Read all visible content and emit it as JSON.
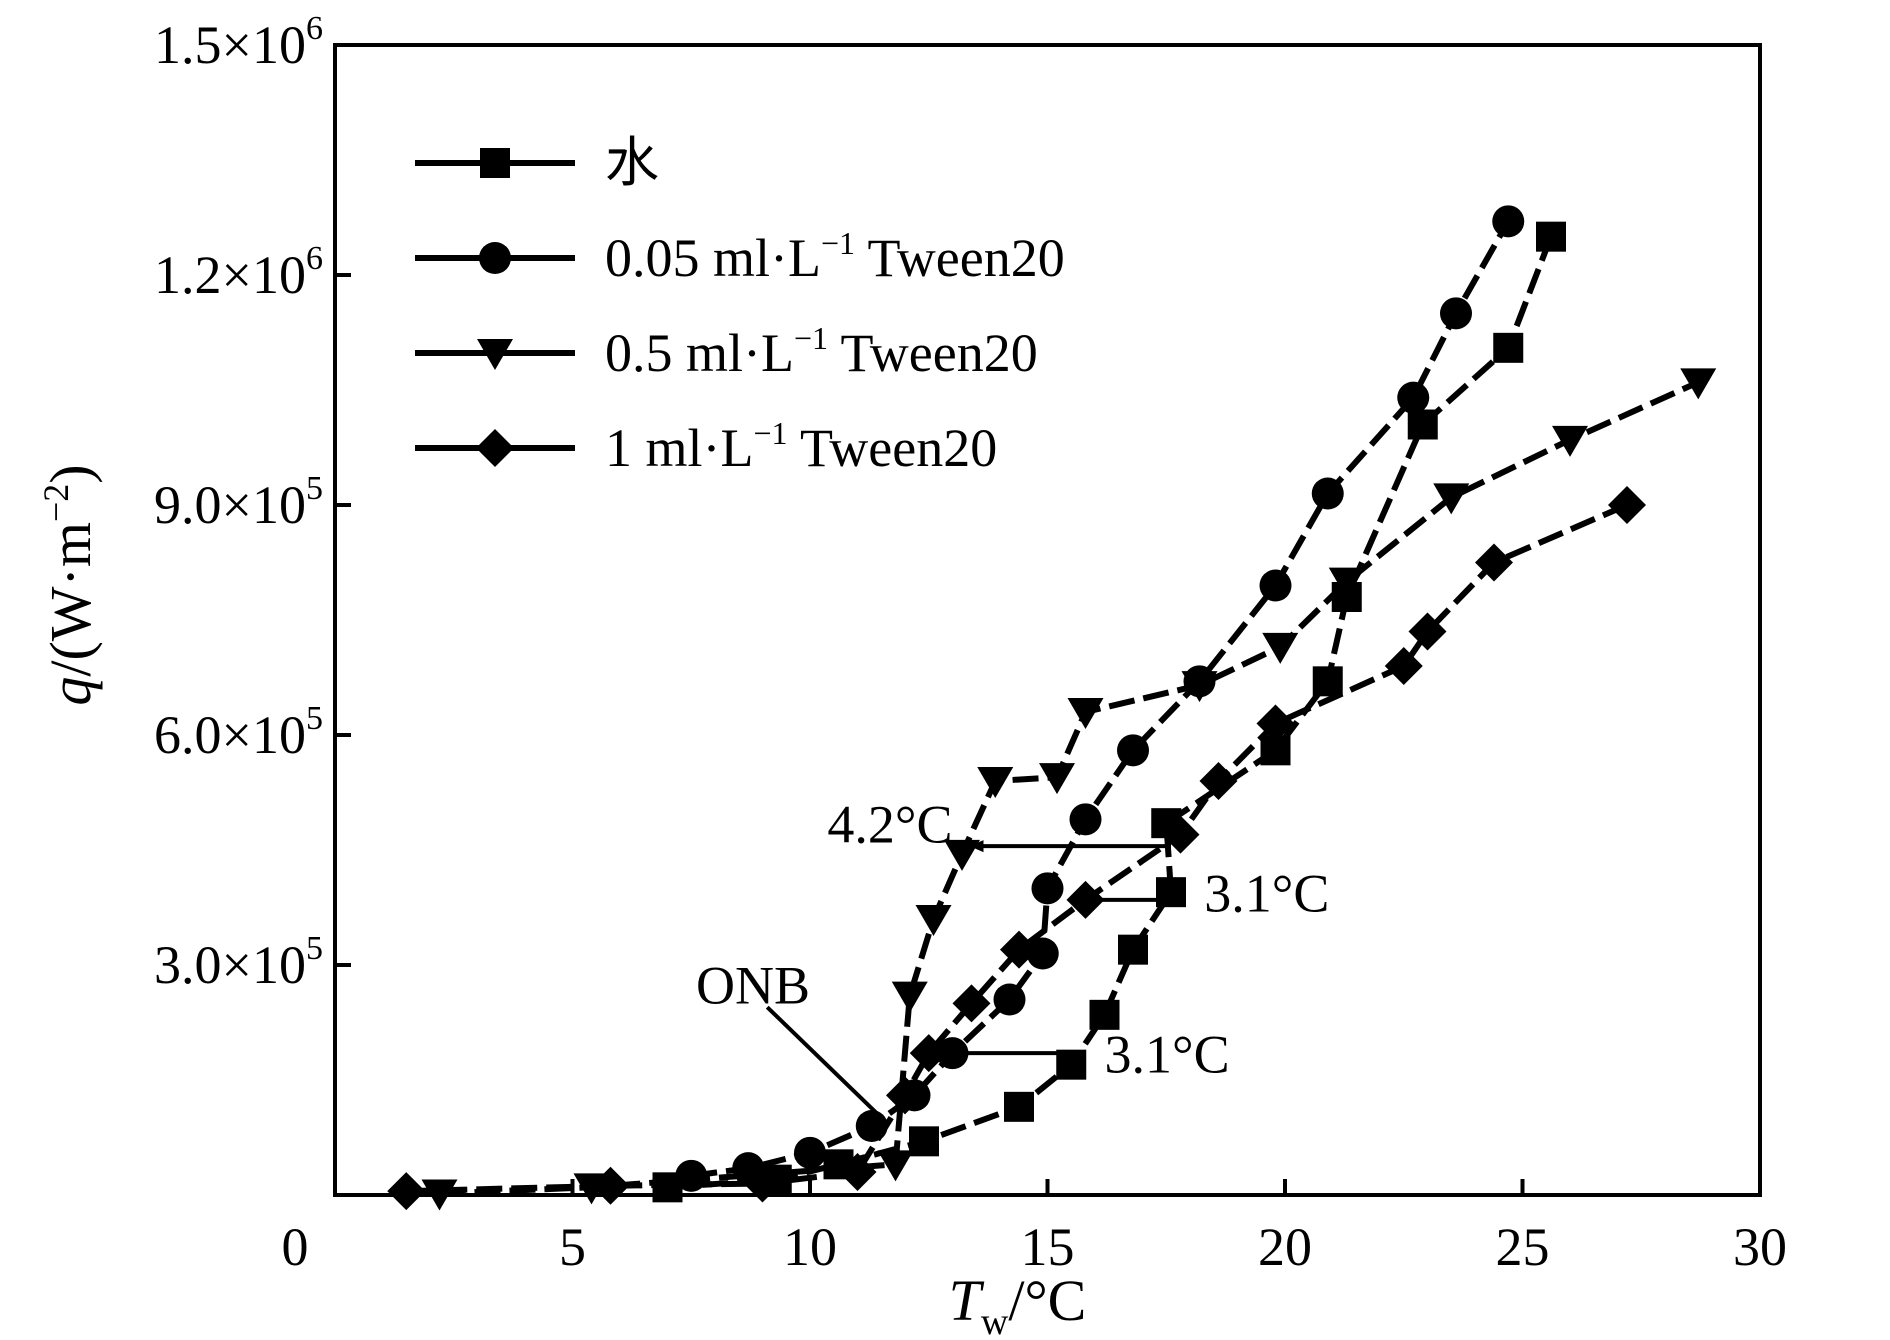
{
  "chart_data": {
    "type": "line",
    "title": "",
    "xlabel": {
      "main": "T",
      "sub": "w",
      "unit": "/°C"
    },
    "ylabel": {
      "main": "q",
      "unit_pre": "/(W·m",
      "unit_exp": "−2",
      "unit_post": ")"
    },
    "xlim": [
      0,
      30
    ],
    "ylim": [
      0,
      1500000
    ],
    "grid": false,
    "legend_position": "top-left",
    "x_ticks": [
      {
        "value": 0,
        "label": "0"
      },
      {
        "value": 5,
        "label": "5"
      },
      {
        "value": 10,
        "label": "10"
      },
      {
        "value": 15,
        "label": "15"
      },
      {
        "value": 20,
        "label": "20"
      },
      {
        "value": 25,
        "label": "25"
      },
      {
        "value": 30,
        "label": "30"
      }
    ],
    "y_ticks": [
      {
        "value": 300000,
        "mant": "3.0×10",
        "exp": "5"
      },
      {
        "value": 600000,
        "mant": "6.0×10",
        "exp": "5"
      },
      {
        "value": 900000,
        "mant": "9.0×10",
        "exp": "5"
      },
      {
        "value": 1200000,
        "mant": "1.2×10",
        "exp": "6"
      },
      {
        "value": 1500000,
        "mant": "1.5×10",
        "exp": "6"
      }
    ],
    "series": [
      {
        "name": "水",
        "label_parts": {
          "pre": "水",
          "exp": "",
          "post": ""
        },
        "marker": "square",
        "x": [
          7.0,
          9.3,
          10.6,
          12.4,
          14.4,
          15.5,
          16.2,
          16.8,
          17.6,
          17.5,
          19.8,
          20.9,
          21.3,
          22.9,
          24.7,
          25.6
        ],
        "y": [
          10000,
          20000,
          40000,
          70000,
          115000,
          170000,
          235000,
          320000,
          395000,
          485000,
          580000,
          670000,
          780000,
          1005000,
          1105000,
          1250000
        ]
      },
      {
        "name": "0.05 ml·L−1 Tween20",
        "label_parts": {
          "pre": "0.05 ml·L",
          "exp": "−1",
          "post": " Tween20"
        },
        "marker": "circle",
        "x": [
          7.5,
          8.7,
          10.0,
          11.3,
          12.2,
          13.0,
          14.2,
          14.9,
          15.0,
          15.8,
          16.8,
          18.2,
          19.8,
          20.9,
          22.7,
          23.6,
          24.7
        ],
        "y": [
          25000,
          35000,
          55000,
          90000,
          130000,
          185000,
          255000,
          315000,
          400000,
          490000,
          580000,
          670000,
          795000,
          915000,
          1040000,
          1150000,
          1270000
        ]
      },
      {
        "name": "0.5 ml·L−1 Tween20",
        "label_parts": {
          "pre": "0.5 ml·L",
          "exp": "−1",
          "post": " Tween20"
        },
        "marker": "triangle-down",
        "x": [
          2.2,
          5.4,
          11.8,
          12.1,
          12.6,
          13.2,
          13.9,
          15.2,
          15.8,
          18.2,
          19.9,
          21.3,
          23.5,
          26.0,
          28.7
        ],
        "y": [
          2000,
          10000,
          40000,
          260000,
          360000,
          445000,
          540000,
          545000,
          630000,
          665000,
          715000,
          800000,
          910000,
          985000,
          1060000
        ]
      },
      {
        "name": "1 ml·L−1 Tween20",
        "label_parts": {
          "pre": "1 ml·L",
          "exp": "−1",
          "post": " Tween20"
        },
        "marker": "diamond",
        "x": [
          1.5,
          5.8,
          9.0,
          11.0,
          12.0,
          12.5,
          13.4,
          14.4,
          15.8,
          17.8,
          18.6,
          19.8,
          22.5,
          23.0,
          24.4,
          27.2
        ],
        "y": [
          5000,
          12000,
          15000,
          30000,
          130000,
          185000,
          250000,
          320000,
          385000,
          470000,
          540000,
          615000,
          690000,
          735000,
          825000,
          900000
        ]
      }
    ],
    "annotations": [
      {
        "id": "anno-4-2",
        "text": "4.2°C",
        "label_x": 13.0,
        "label_y": 460000,
        "anchor": "end",
        "arrow": {
          "x1": 17.6,
          "y1": 455000,
          "x2": 13.4,
          "y2": 455000,
          "head": true
        }
      },
      {
        "id": "anno-3-1-upper",
        "text": "3.1°C",
        "label_x": 18.3,
        "label_y": 370000,
        "anchor": "start",
        "arrow": {
          "x1": 17.6,
          "y1": 385000,
          "x2": 15.8,
          "y2": 385000,
          "head": true
        }
      },
      {
        "id": "anno-3-1-lower",
        "text": "3.1°C",
        "label_x": 16.2,
        "label_y": 160000,
        "anchor": "start",
        "arrow": {
          "x1": 15.5,
          "y1": 185000,
          "x2": 13.0,
          "y2": 185000,
          "head": false
        }
      },
      {
        "id": "anno-onb",
        "text": "ONB",
        "label_x": 8.8,
        "label_y": 250000,
        "anchor": "middle",
        "arrow": {
          "x1": 9.1,
          "y1": 245000,
          "x2": 11.6,
          "y2": 95000,
          "head": false
        }
      }
    ]
  }
}
